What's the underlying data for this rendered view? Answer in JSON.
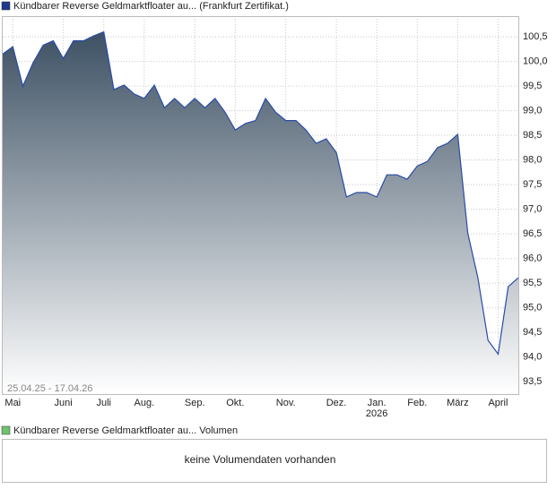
{
  "chart_data": {
    "type": "line",
    "categories": [
      null,
      "Mai",
      null,
      null,
      null,
      null,
      "Juni",
      null,
      null,
      null,
      "Juli",
      null,
      null,
      null,
      "Aug.",
      null,
      null,
      null,
      null,
      "Sep.",
      null,
      null,
      null,
      "Okt.",
      null,
      null,
      null,
      null,
      "Nov.",
      null,
      null,
      null,
      null,
      "Dez.",
      null,
      null,
      null,
      "Jan.",
      null,
      null,
      null,
      "Feb.",
      null,
      null,
      null,
      "März",
      null,
      null,
      null,
      "April",
      null,
      null
    ],
    "x_sublabels": [
      null,
      null,
      null,
      null,
      null,
      null,
      null,
      null,
      null,
      null,
      null,
      null,
      null,
      null,
      null,
      null,
      null,
      null,
      null,
      null,
      null,
      null,
      null,
      null,
      null,
      null,
      null,
      null,
      null,
      null,
      null,
      null,
      null,
      null,
      null,
      null,
      null,
      "2026",
      null,
      null,
      null,
      null,
      null,
      null,
      null,
      null,
      null,
      null,
      null,
      null,
      null,
      null
    ],
    "series": [
      {
        "name": "Kündbarer Reverse Geldmarktfloater au... (Frankfurt Zertifikat.)",
        "color": "#2a4ba8",
        "values": [
          100.15,
          100.3,
          99.5,
          99.97,
          100.33,
          100.42,
          100.06,
          100.42,
          100.42,
          100.52,
          100.6,
          99.43,
          99.52,
          99.34,
          99.25,
          99.52,
          99.06,
          99.25,
          99.06,
          99.25,
          99.06,
          99.25,
          98.97,
          98.61,
          98.74,
          98.8,
          99.25,
          98.97,
          98.8,
          98.8,
          98.61,
          98.34,
          98.43,
          98.15,
          97.25,
          97.34,
          97.34,
          97.25,
          97.7,
          97.7,
          97.61,
          97.88,
          97.97,
          98.25,
          98.34,
          98.52,
          96.52,
          95.61,
          94.34,
          94.06,
          95.43,
          95.61
        ]
      }
    ],
    "ylim": [
      93.25,
      100.92
    ],
    "yticks": [
      {
        "value": 93.5,
        "label": "93,5"
      },
      {
        "value": 94.0,
        "label": "94,0"
      },
      {
        "value": 94.5,
        "label": "94,5"
      },
      {
        "value": 95.0,
        "label": "95,0"
      },
      {
        "value": 95.5,
        "label": "95,5"
      },
      {
        "value": 96.0,
        "label": "96,0"
      },
      {
        "value": 96.5,
        "label": "96,5"
      },
      {
        "value": 97.0,
        "label": "97,0"
      },
      {
        "value": 97.5,
        "label": "97,5"
      },
      {
        "value": 98.0,
        "label": "98,0"
      },
      {
        "value": 98.5,
        "label": "98,5"
      },
      {
        "value": 99.0,
        "label": "99,0"
      },
      {
        "value": 99.5,
        "label": "99,5"
      },
      {
        "value": 100.0,
        "label": "100,0"
      },
      {
        "value": 100.5,
        "label": "100,5"
      }
    ],
    "grid": true,
    "date_range": "25.04.25 - 17.04.26"
  },
  "volume_panel": {
    "legend": "Kündbarer Reverse Geldmarktfloater au... Volumen",
    "message": "keine Volumendaten vorhanden"
  }
}
